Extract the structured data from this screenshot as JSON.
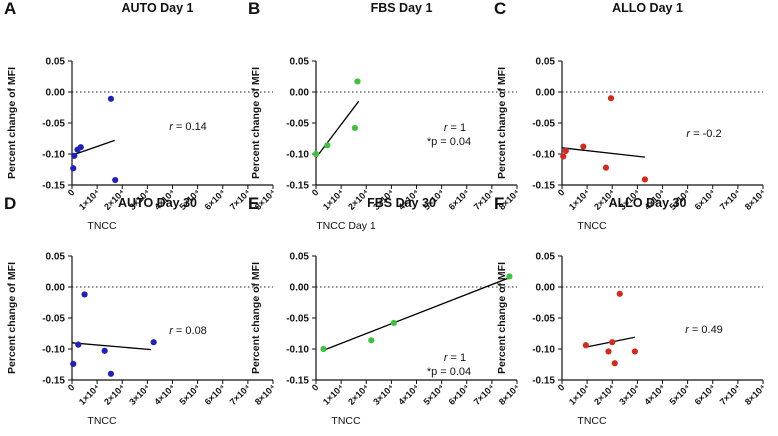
{
  "colors": {
    "blue": "#1f22b8",
    "green": "#3cc23c",
    "red": "#d42a1e",
    "axis": "#111111",
    "fit": "#000000"
  },
  "chart_data": [
    {
      "id": "A",
      "type": "scatter",
      "title": "AUTO Day 1",
      "xlabel": "TNCC",
      "ylabel": "Percent change of MFI",
      "xlim": [
        0,
        80000
      ],
      "ylim": [
        -0.15,
        0.05
      ],
      "xticks": [
        "0",
        "1×10⁴",
        "2×10⁴",
        "3×10⁴",
        "4×10⁴",
        "5×10⁴",
        "6×10⁴",
        "7×10⁴",
        "8×10⁴"
      ],
      "yticks": [
        "0.05",
        "0.00",
        "-0.05",
        "-0.10",
        "-0.15"
      ],
      "reference_line_y": 0,
      "color": "blue",
      "points": [
        {
          "x": 500,
          "y": -0.123
        },
        {
          "x": 900,
          "y": -0.103
        },
        {
          "x": 2200,
          "y": -0.093
        },
        {
          "x": 3500,
          "y": -0.089
        },
        {
          "x": 15500,
          "y": -0.011
        },
        {
          "x": 17200,
          "y": -0.142
        }
      ],
      "fit_line": [
        {
          "x": 0,
          "y": -0.102
        },
        {
          "x": 17000,
          "y": -0.078
        }
      ],
      "annotations": [
        {
          "r_label": "r",
          "r_value": " = 0.14"
        }
      ]
    },
    {
      "id": "B",
      "type": "scatter",
      "title": "FBS Day 1",
      "xlabel": "TNCC Day 1",
      "ylabel": "Percent change of MFI",
      "xlim": [
        0,
        80000
      ],
      "ylim": [
        -0.15,
        0.05
      ],
      "xticks": [
        "0",
        "1×10⁴",
        "2×10⁴",
        "3×10⁴",
        "4×10⁴",
        "5×10⁴",
        "6×10⁴",
        "7×10⁴",
        "8×10⁴"
      ],
      "yticks": [
        "0.05",
        "0.00",
        "-0.05",
        "-0.10",
        "-0.15"
      ],
      "reference_line_y": 0,
      "color": "green",
      "points": [
        {
          "x": 0,
          "y": -0.1
        },
        {
          "x": 4500,
          "y": -0.086
        },
        {
          "x": 15500,
          "y": -0.058
        },
        {
          "x": 16500,
          "y": 0.017
        }
      ],
      "fit_line": [
        {
          "x": 0,
          "y": -0.106
        },
        {
          "x": 17000,
          "y": -0.015
        }
      ],
      "annotations": [
        {
          "r_label": "r",
          "r_value": " = 1",
          "p_text": "*p = 0.04"
        }
      ]
    },
    {
      "id": "C",
      "type": "scatter",
      "title": "ALLO Day 1",
      "xlabel": "TNCC",
      "ylabel": "Percent change of MFI",
      "xlim": [
        0,
        80000
      ],
      "ylim": [
        -0.15,
        0.05
      ],
      "xticks": [
        "0",
        "1×10⁴",
        "2×10⁴",
        "3×10⁴",
        "4×10⁴",
        "5×10⁴",
        "6×10⁴",
        "7×10⁴",
        "8×10⁴"
      ],
      "yticks": [
        "0.05",
        "0.00",
        "-0.05",
        "-0.10",
        "-0.15"
      ],
      "reference_line_y": 0,
      "color": "red",
      "points": [
        {
          "x": 500,
          "y": -0.104
        },
        {
          "x": 1500,
          "y": -0.095
        },
        {
          "x": 8500,
          "y": -0.088
        },
        {
          "x": 17500,
          "y": -0.122
        },
        {
          "x": 19500,
          "y": -0.01
        },
        {
          "x": 33000,
          "y": -0.141
        }
      ],
      "fit_line": [
        {
          "x": 0,
          "y": -0.09
        },
        {
          "x": 33000,
          "y": -0.105
        }
      ],
      "annotations": [
        {
          "r_label": "r",
          "r_value": " = -0.2"
        }
      ]
    },
    {
      "id": "D",
      "type": "scatter",
      "title": "AUTO Day 30",
      "xlabel": "TNCC",
      "ylabel": "Percent change of MFI",
      "xlim": [
        0,
        80000
      ],
      "ylim": [
        -0.15,
        0.05
      ],
      "xticks": [
        "0",
        "1×10⁴",
        "2×10⁴",
        "3×10⁴",
        "4×10⁴",
        "5×10⁴",
        "6×10⁴",
        "7×10⁴",
        "8×10⁴"
      ],
      "yticks": [
        "0.05",
        "0.00",
        "-0.05",
        "-0.10",
        "-0.15"
      ],
      "reference_line_y": 0,
      "color": "blue",
      "points": [
        {
          "x": 500,
          "y": -0.124
        },
        {
          "x": 2500,
          "y": -0.093
        },
        {
          "x": 5000,
          "y": -0.012
        },
        {
          "x": 13000,
          "y": -0.103
        },
        {
          "x": 15500,
          "y": -0.14
        },
        {
          "x": 32500,
          "y": -0.089
        }
      ],
      "fit_line": [
        {
          "x": 0,
          "y": -0.09
        },
        {
          "x": 31500,
          "y": -0.101
        }
      ],
      "annotations": [
        {
          "r_label": "r",
          "r_value": " = 0.08"
        }
      ]
    },
    {
      "id": "E",
      "type": "scatter",
      "title": "FBS Day 30",
      "xlabel": "TNCC",
      "ylabel": "Percent change of MFI",
      "xlim": [
        0,
        80000
      ],
      "ylim": [
        -0.15,
        0.05
      ],
      "xticks": [
        "0",
        "1×10⁴",
        "2×10⁴",
        "3×10⁴",
        "4×10⁴",
        "5×10⁴",
        "6×10⁴",
        "7×10⁴",
        "8×10⁴"
      ],
      "yticks": [
        "0.05",
        "0.00",
        "-0.05",
        "-0.10",
        "-0.15"
      ],
      "reference_line_y": 0,
      "color": "green",
      "points": [
        {
          "x": 3000,
          "y": -0.1
        },
        {
          "x": 22000,
          "y": -0.086
        },
        {
          "x": 31000,
          "y": -0.058
        },
        {
          "x": 77000,
          "y": 0.017
        }
      ],
      "fit_line": [
        {
          "x": 3000,
          "y": -0.102
        },
        {
          "x": 77000,
          "y": 0.015
        }
      ],
      "annotations": [
        {
          "r_label": "r",
          "r_value": " = 1",
          "p_text": "*p = 0.04"
        }
      ]
    },
    {
      "id": "F",
      "type": "scatter",
      "title": "ALLO Day 30",
      "xlabel": "TNCC",
      "ylabel": "Percent change of MFI",
      "xlim": [
        0,
        80000
      ],
      "ylim": [
        -0.15,
        0.05
      ],
      "xticks": [
        "0",
        "1×10⁴",
        "2×10⁴",
        "3×10⁴",
        "4×10⁴",
        "5×10⁴",
        "6×10⁴",
        "7×10⁴",
        "8×10⁴"
      ],
      "yticks": [
        "0.05",
        "0.00",
        "-0.05",
        "-0.10",
        "-0.15"
      ],
      "reference_line_y": 0,
      "color": "red",
      "points": [
        {
          "x": 9500,
          "y": -0.094
        },
        {
          "x": 18500,
          "y": -0.104
        },
        {
          "x": 20000,
          "y": -0.089
        },
        {
          "x": 21000,
          "y": -0.123
        },
        {
          "x": 23000,
          "y": -0.011
        },
        {
          "x": 29000,
          "y": -0.104
        }
      ],
      "fit_line": [
        {
          "x": 9500,
          "y": -0.097
        },
        {
          "x": 29000,
          "y": -0.081
        }
      ],
      "annotations": [
        {
          "r_label": "r",
          "r_value": " = 0.49"
        }
      ]
    }
  ]
}
